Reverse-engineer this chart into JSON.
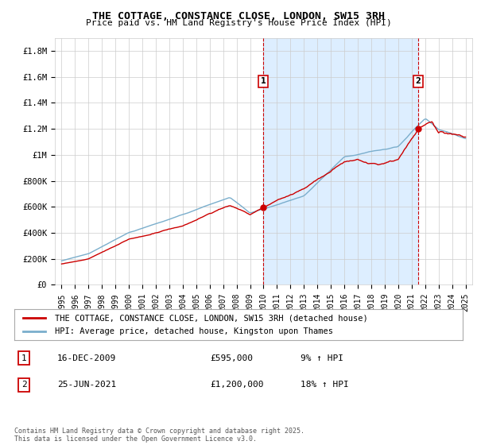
{
  "title_line1": "THE COTTAGE, CONSTANCE CLOSE, LONDON, SW15 3RH",
  "title_line2": "Price paid vs. HM Land Registry's House Price Index (HPI)",
  "ylabel_ticks": [
    "£0",
    "£200K",
    "£400K",
    "£600K",
    "£800K",
    "£1M",
    "£1.2M",
    "£1.4M",
    "£1.6M",
    "£1.8M"
  ],
  "ytick_values": [
    0,
    200000,
    400000,
    600000,
    800000,
    1000000,
    1200000,
    1400000,
    1600000,
    1800000
  ],
  "ylim": [
    0,
    1900000
  ],
  "xlim_start": 1994.5,
  "xlim_end": 2025.5,
  "xtick_years": [
    1995,
    1996,
    1997,
    1998,
    1999,
    2000,
    2001,
    2002,
    2003,
    2004,
    2005,
    2006,
    2007,
    2008,
    2009,
    2010,
    2011,
    2012,
    2013,
    2014,
    2015,
    2016,
    2017,
    2018,
    2019,
    2020,
    2021,
    2022,
    2023,
    2024,
    2025
  ],
  "marker1_x": 2009.96,
  "marker1_y": 595000,
  "marker1_label": "1",
  "marker2_x": 2021.48,
  "marker2_y": 1200000,
  "marker2_label": "2",
  "sale_color": "#cc0000",
  "hpi_color": "#7aaecc",
  "shade_color": "#ddeeff",
  "vline_color": "#cc0000",
  "legend_sale": "THE COTTAGE, CONSTANCE CLOSE, LONDON, SW15 3RH (detached house)",
  "legend_hpi": "HPI: Average price, detached house, Kingston upon Thames",
  "annotation1_num": "1",
  "annotation1_date": "16-DEC-2009",
  "annotation1_price": "£595,000",
  "annotation1_hpi": "9% ↑ HPI",
  "annotation2_num": "2",
  "annotation2_date": "25-JUN-2021",
  "annotation2_price": "£1,200,000",
  "annotation2_hpi": "18% ↑ HPI",
  "footer": "Contains HM Land Registry data © Crown copyright and database right 2025.\nThis data is licensed under the Open Government Licence v3.0.",
  "bg_color": "#ffffff",
  "grid_color": "#cccccc"
}
